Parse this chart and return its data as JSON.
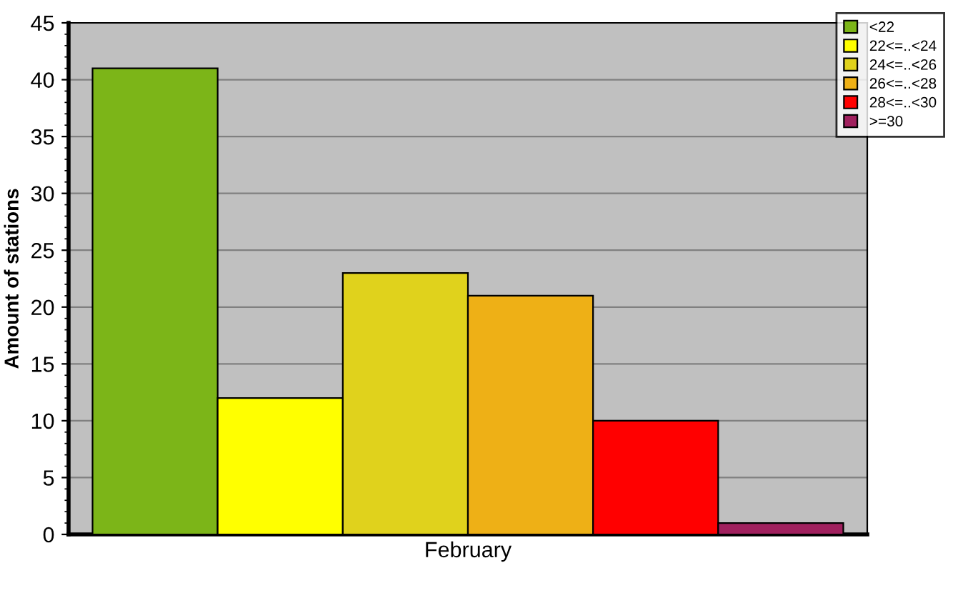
{
  "chart_data": {
    "type": "bar",
    "ylabel": "Amount of stations",
    "categories": [
      "February"
    ],
    "series": [
      {
        "name": "<22",
        "color": "#7cb518",
        "values": [
          41
        ]
      },
      {
        "name": "22<=..<24",
        "color": "#ffff00",
        "values": [
          12
        ]
      },
      {
        "name": "24<=..<26",
        "color": "#e0d21c",
        "values": [
          23
        ]
      },
      {
        "name": "26<=..<28",
        "color": "#eeb016",
        "values": [
          21
        ]
      },
      {
        "name": "28<=..<30",
        "color": "#ff0000",
        "values": [
          10
        ]
      },
      {
        "name": ">=30",
        "color": "#a0205e",
        "values": [
          1
        ]
      }
    ],
    "ylim": [
      0,
      45
    ],
    "yticks": [
      0,
      5,
      10,
      15,
      20,
      25,
      30,
      35,
      40,
      45
    ],
    "grid": "y",
    "legend": "top right"
  }
}
